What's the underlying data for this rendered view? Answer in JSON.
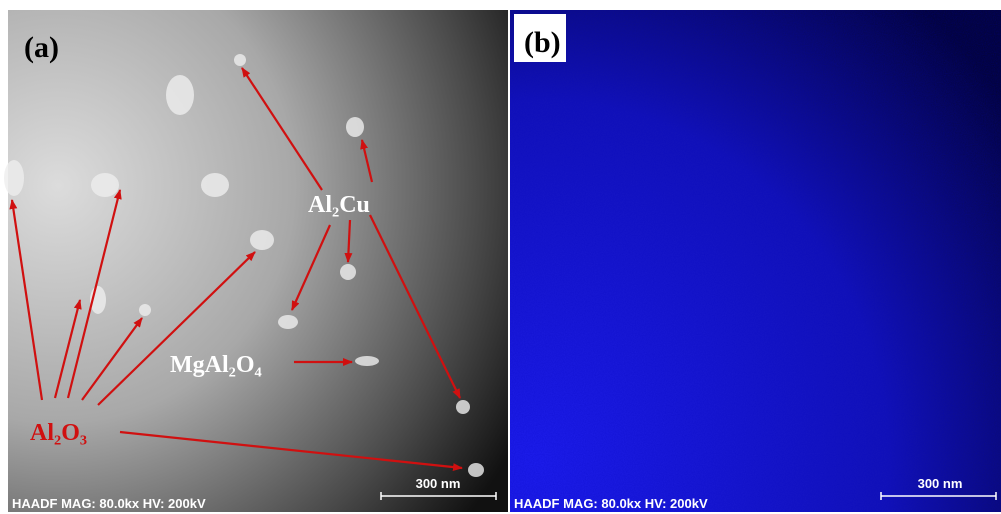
{
  "panels": [
    {
      "label": "(a)",
      "footer": "HAADF  MAG: 80.0kx  HV: 200kV",
      "scale_bar": "300 nm",
      "annotations": [
        "Al₂O₃",
        "Al₂Cu",
        "MgAl₂O₄"
      ]
    },
    {
      "label": "(b)",
      "footer": "HAADF  MAG: 80.0kx  HV: 200kV",
      "scale_bar": "300 nm"
    }
  ]
}
